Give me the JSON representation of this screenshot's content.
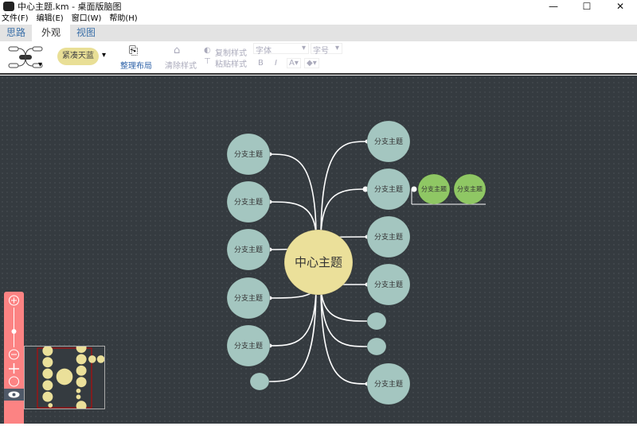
{
  "window": {
    "title": "中心主题.km - 桌面版脑图",
    "controls": [
      "—",
      "☐",
      "✕"
    ]
  },
  "menu": [
    "文件(F)",
    "编辑(E)",
    "窗口(W)",
    "帮助(H)"
  ],
  "tabs": [
    "思路",
    "外观",
    "视图"
  ],
  "toolbar": {
    "theme": "紧凑天蓝",
    "layout": "整理布局",
    "clear_style": "清除样式",
    "copy_style": "复制样式",
    "paste_style": "粘贴样式",
    "font": "字体",
    "font_size": "字号",
    "bold": "B",
    "italic": "I",
    "font_color": "A"
  },
  "map": {
    "root": "中心主题",
    "branch": "分支主题",
    "colors": {
      "root": "#ebe09a",
      "branch": "#a4c6c0",
      "leaf": "#8fc764",
      "link": "#ffffff"
    }
  },
  "zoom": {
    "level_fraction": 0.4
  }
}
